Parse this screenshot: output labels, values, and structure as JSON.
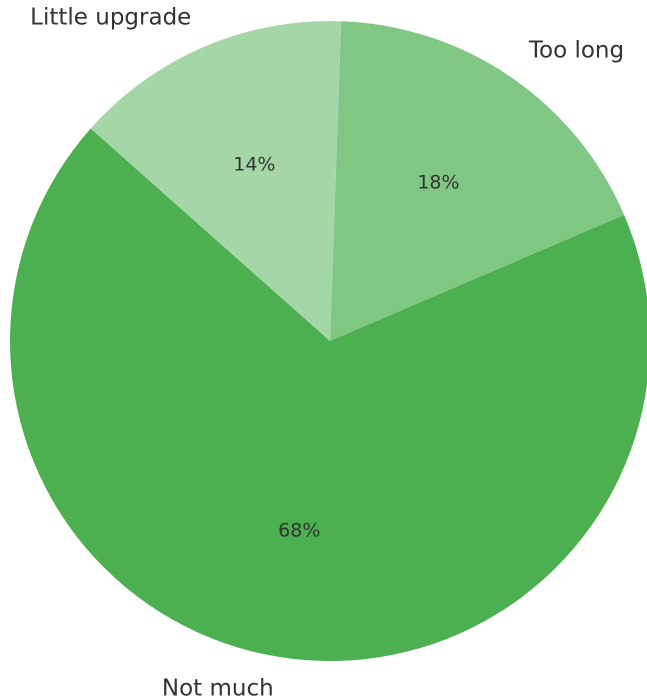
{
  "chart_data": {
    "type": "pie",
    "slices": [
      {
        "label": "Too long",
        "value": 18,
        "display": "18%",
        "color": "#81c784"
      },
      {
        "label": "Not much",
        "value": 68,
        "display": "68%",
        "color": "#4caf50"
      },
      {
        "label": "Little upgrade",
        "value": 14,
        "display": "14%",
        "color": "#a5d6a7"
      }
    ],
    "start_angle_deg": 88,
    "direction": "clockwise"
  }
}
